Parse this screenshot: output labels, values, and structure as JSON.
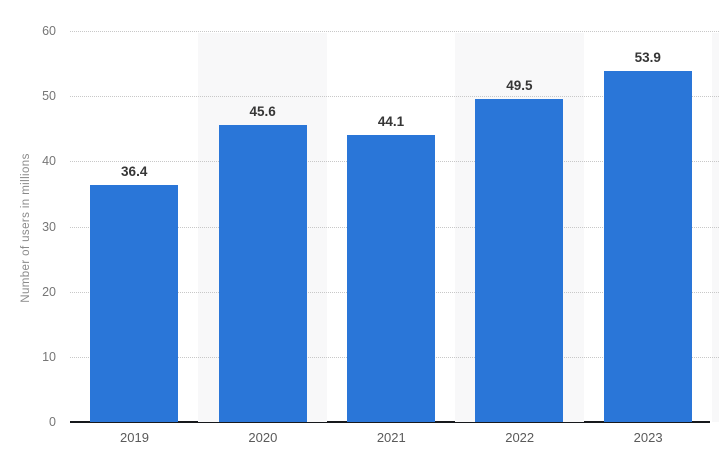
{
  "chart_data": {
    "type": "bar",
    "title": "",
    "xlabel": "",
    "ylabel": "Number of users in millions",
    "categories": [
      "2019",
      "2020",
      "2021",
      "2022",
      "2023"
    ],
    "values": [
      36.4,
      45.6,
      44.1,
      49.5,
      53.9
    ],
    "value_labels": [
      "36.4",
      "45.6",
      "44.1",
      "49.5",
      "53.9"
    ],
    "ylim": [
      0,
      60
    ],
    "yticks": [
      0,
      10,
      20,
      30,
      40,
      50,
      60
    ],
    "grid": "horizontal-dotted",
    "legend": "none",
    "banded_category_indices": [
      1,
      3
    ],
    "partial_band_right": true,
    "colors": {
      "bar": "#2a76d8",
      "plot_band": "#f8f8f9",
      "gridline": "#c8c8c8",
      "axis_line": "#17191c",
      "tick_label": "#767676",
      "category_label": "#5a5a5a",
      "value_label": "#363636",
      "axis_title": "#8a8a8a",
      "background": "#ffffff"
    }
  }
}
